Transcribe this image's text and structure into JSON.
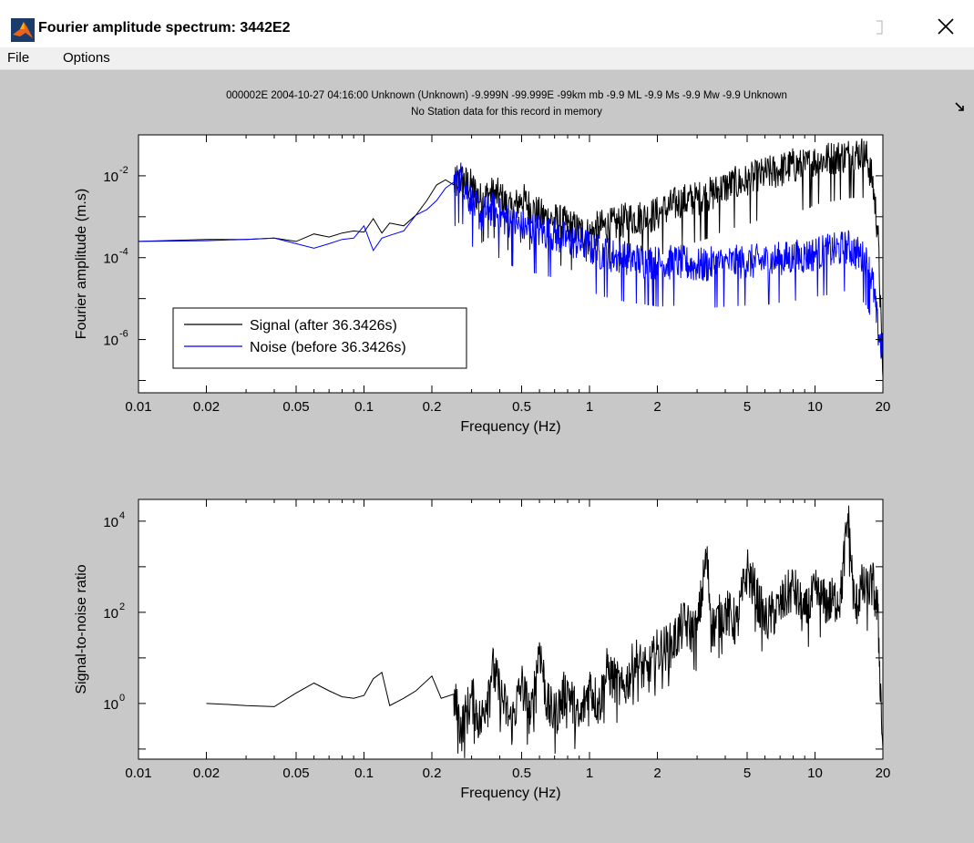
{
  "window": {
    "title": "Fourier amplitude spectrum: 3442E2",
    "menu": [
      "File",
      "Options"
    ]
  },
  "colors": {
    "signal": "#000000",
    "noise": "#0000ff",
    "figure_bg": "#c8c8c8"
  },
  "icons": {
    "app": "matlab-logo-icon",
    "maximize": "maximize-icon",
    "close": "close-icon",
    "dock": "dock-arrow-icon"
  },
  "header": {
    "line1": "000002E 2004-10-27 04:16:00 Unknown (Unknown) -9.999N -99.999E -99km  mb -9.9 ML -9.9 Ms -9.9 Mw -9.9 Unknown",
    "line2": "No Station data for this record in memory"
  },
  "chart_data": [
    {
      "type": "line",
      "xscale": "log",
      "yscale": "log",
      "xlabel": "Frequency (Hz)",
      "ylabel": "Fourier amplitude (m.s)",
      "xlim": [
        0.01,
        20
      ],
      "ylim": [
        5e-08,
        0.1
      ],
      "xticks": [
        0.01,
        0.02,
        0.05,
        0.1,
        0.2,
        0.5,
        1,
        2,
        5,
        10,
        20
      ],
      "xtick_labels": [
        "0.01",
        "0.02",
        "0.05",
        "0.1",
        "0.2",
        "0.5",
        "1",
        "2",
        "5",
        "10",
        "20"
      ],
      "yticks": [
        {
          "value": 1e-06,
          "base": "10",
          "exp": "-6"
        },
        {
          "value": 0.0001,
          "base": "10",
          "exp": "-4"
        },
        {
          "value": 0.01,
          "base": "10",
          "exp": "-2"
        }
      ],
      "legend_position": "lower-left",
      "series": [
        {
          "name": "Signal (after 36.3426s)",
          "color": "#000000",
          "x": [
            0.01,
            0.02,
            0.03,
            0.04,
            0.05,
            0.06,
            0.07,
            0.08,
            0.09,
            0.1,
            0.11,
            0.12,
            0.13,
            0.15,
            0.17,
            0.19,
            0.21,
            0.23,
            0.25,
            0.27,
            0.3,
            0.33,
            0.36,
            0.4,
            0.45,
            0.5,
            0.6,
            0.7,
            0.8,
            0.9,
            1.0,
            1.1,
            1.3,
            1.5,
            1.8,
            2.0,
            2.5,
            3.0,
            3.5,
            4.0,
            5.0,
            6.0,
            7.0,
            8.0,
            9.0,
            10.0,
            12.0,
            14.0,
            16.0,
            17.0,
            18.0,
            19.0,
            20.0
          ],
          "y": [
            0.00025,
            0.00028,
            0.00028,
            0.0003,
            0.00025,
            0.00038,
            0.00032,
            0.0004,
            0.00045,
            0.00042,
            0.0009,
            0.0004,
            0.0007,
            0.0006,
            0.0011,
            0.0025,
            0.006,
            0.008,
            0.006,
            0.009,
            0.006,
            0.0028,
            0.004,
            0.0035,
            0.0015,
            0.003,
            0.0012,
            0.0009,
            0.0007,
            0.0005,
            0.0004,
            0.0006,
            0.0007,
            0.001,
            0.0011,
            0.0013,
            0.0025,
            0.003,
            0.004,
            0.006,
            0.008,
            0.012,
            0.015,
            0.02,
            0.018,
            0.025,
            0.03,
            0.035,
            0.04,
            0.03,
            0.008,
            0.0005,
            1.2e-07
          ]
        },
        {
          "name": "Noise (before 36.3426s)",
          "color": "#0000ff",
          "x": [
            0.01,
            0.02,
            0.03,
            0.04,
            0.05,
            0.06,
            0.07,
            0.08,
            0.09,
            0.1,
            0.11,
            0.12,
            0.13,
            0.15,
            0.17,
            0.19,
            0.21,
            0.23,
            0.25,
            0.27,
            0.3,
            0.33,
            0.36,
            0.4,
            0.45,
            0.5,
            0.6,
            0.7,
            0.8,
            0.9,
            1.0,
            1.1,
            1.3,
            1.5,
            1.8,
            2.0,
            2.5,
            3.0,
            3.5,
            4.0,
            5.0,
            6.0,
            7.0,
            8.0,
            9.0,
            10.0,
            12.0,
            14.0,
            16.0,
            17.0,
            18.0,
            19.0,
            20.0
          ],
          "y": [
            0.00025,
            0.00026,
            0.00028,
            0.0003,
            0.00022,
            0.00017,
            0.00022,
            0.00028,
            0.0003,
            0.0006,
            0.00015,
            0.0003,
            0.00035,
            0.00045,
            0.0011,
            0.0015,
            0.0025,
            0.005,
            0.007,
            0.01,
            0.0025,
            0.0012,
            0.0018,
            0.0012,
            0.0008,
            0.0006,
            0.0005,
            0.0004,
            0.0003,
            0.00025,
            0.0002,
            0.00015,
            0.00012,
            0.0001,
            9e-05,
            8e-05,
            8.5e-05,
            7e-05,
            7.5e-05,
            8e-05,
            8.5e-05,
            9e-05,
            0.0001,
            0.00011,
            0.00012,
            0.00014,
            0.00016,
            0.0002,
            0.00012,
            8e-05,
            3e-05,
            2e-06,
            5e-07
          ]
        }
      ]
    },
    {
      "type": "line",
      "xscale": "log",
      "yscale": "log",
      "xlabel": "Frequency (Hz)",
      "ylabel": "Signal-to-noise ratio",
      "xlim": [
        0.01,
        20
      ],
      "ylim": [
        0.06,
        30000
      ],
      "xticks": [
        0.01,
        0.02,
        0.05,
        0.1,
        0.2,
        0.5,
        1,
        2,
        5,
        10,
        20
      ],
      "xtick_labels": [
        "0.01",
        "0.02",
        "0.05",
        "0.1",
        "0.2",
        "0.5",
        "1",
        "2",
        "5",
        "10",
        "20"
      ],
      "yticks": [
        {
          "value": 1,
          "base": "10",
          "exp": "0"
        },
        {
          "value": 100,
          "base": "10",
          "exp": "2"
        },
        {
          "value": 10000,
          "base": "10",
          "exp": "4"
        }
      ],
      "series": [
        {
          "color": "#000000",
          "x": [
            0.02,
            0.025,
            0.03,
            0.04,
            0.05,
            0.06,
            0.07,
            0.08,
            0.09,
            0.1,
            0.11,
            0.12,
            0.13,
            0.15,
            0.17,
            0.2,
            0.22,
            0.25,
            0.27,
            0.3,
            0.33,
            0.37,
            0.4,
            0.45,
            0.5,
            0.55,
            0.6,
            0.65,
            0.7,
            0.8,
            0.9,
            1.0,
            1.1,
            1.2,
            1.4,
            1.6,
            1.8,
            2.0,
            2.3,
            2.6,
            3.0,
            3.3,
            3.5,
            4.0,
            4.5,
            5.0,
            6.0,
            7.0,
            8.0,
            9.0,
            10.0,
            11.0,
            12.0,
            13.0,
            14.0,
            15.0,
            16.0,
            17.0,
            18.0,
            19.0,
            20.0
          ],
          "y": [
            1.0,
            0.95,
            0.9,
            0.85,
            1.7,
            2.8,
            1.9,
            1.4,
            1.3,
            1.5,
            3.5,
            4.8,
            0.9,
            1.3,
            1.9,
            4.0,
            1.3,
            1.6,
            0.3,
            1.5,
            0.4,
            7.0,
            2.0,
            0.4,
            3.0,
            0.5,
            22.0,
            1.0,
            0.6,
            2.5,
            0.4,
            3.0,
            1.0,
            6.0,
            2.0,
            10.0,
            5.0,
            15.0,
            20.0,
            60.0,
            40.0,
            2000.0,
            50.0,
            120.0,
            60.0,
            1000.0,
            70.0,
            150.0,
            400.0,
            90.0,
            300.0,
            180.0,
            200.0,
            250.0,
            15000.0,
            120.0,
            400.0,
            300.0,
            500.0,
            100.0,
            0.1
          ]
        }
      ]
    }
  ]
}
